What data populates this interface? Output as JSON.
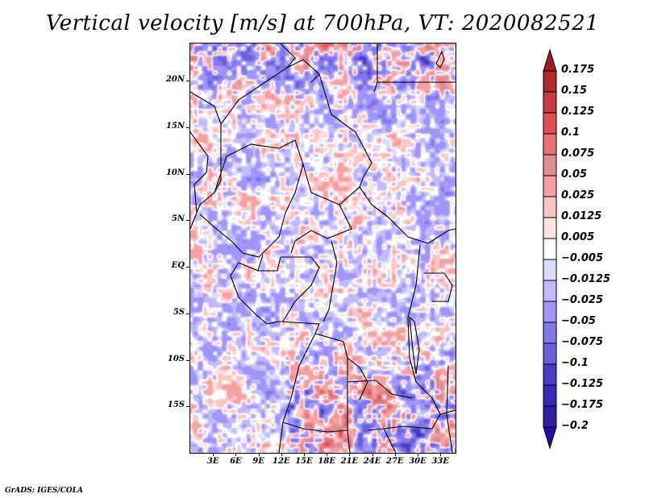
{
  "title": "Vertical velocity [m/s] at 700hPa, VT: 2020082521",
  "footer": "GrADS: IGES/COLA",
  "map": {
    "variable": "Vertical velocity",
    "units": "m/s",
    "level": "700hPa",
    "valid_time": "2020082521",
    "region": "Central Africa",
    "lon_range": [
      0,
      35
    ],
    "lat_range": [
      -20,
      24
    ],
    "y_ticks": [
      {
        "label": "20N",
        "lat": 20
      },
      {
        "label": "15N",
        "lat": 15
      },
      {
        "label": "10N",
        "lat": 10
      },
      {
        "label": "5N",
        "lat": 5
      },
      {
        "label": "EQ",
        "lat": 0
      },
      {
        "label": "5S",
        "lat": -5
      },
      {
        "label": "10S",
        "lat": -10
      },
      {
        "label": "15S",
        "lat": -15
      }
    ],
    "x_ticks": [
      {
        "label": "3E",
        "lon": 3
      },
      {
        "label": "6E",
        "lon": 6
      },
      {
        "label": "9E",
        "lon": 9
      },
      {
        "label": "12E",
        "lon": 12
      },
      {
        "label": "15E",
        "lon": 15
      },
      {
        "label": "18E",
        "lon": 18
      },
      {
        "label": "21E",
        "lon": 21
      },
      {
        "label": "24E",
        "lon": 24
      },
      {
        "label": "27E",
        "lon": 27
      },
      {
        "label": "30E",
        "lon": 30
      },
      {
        "label": "33E",
        "lon": 33
      }
    ]
  },
  "colorbar": {
    "levels": [
      "0.175",
      "0.15",
      "0.125",
      "0.1",
      "0.075",
      "0.05",
      "0.025",
      "0.0125",
      "0.005",
      "−0.005",
      "−0.0125",
      "−0.025",
      "−0.05",
      "−0.075",
      "−0.1",
      "−0.125",
      "−0.175",
      "−0.2"
    ],
    "colors": [
      "#a11d21",
      "#b4272b",
      "#c73b3e",
      "#e3504f",
      "#e57373",
      "#e08c91",
      "#f5a0a3",
      "#fbc5c6",
      "#fde3e3",
      "#ffffff",
      "#dcdcfc",
      "#c2b9fc",
      "#a194fb",
      "#8079e8",
      "#6d5fd9",
      "#4b3cc8",
      "#3b28b6",
      "#2f1fa3",
      "#2a0aa5"
    ]
  }
}
